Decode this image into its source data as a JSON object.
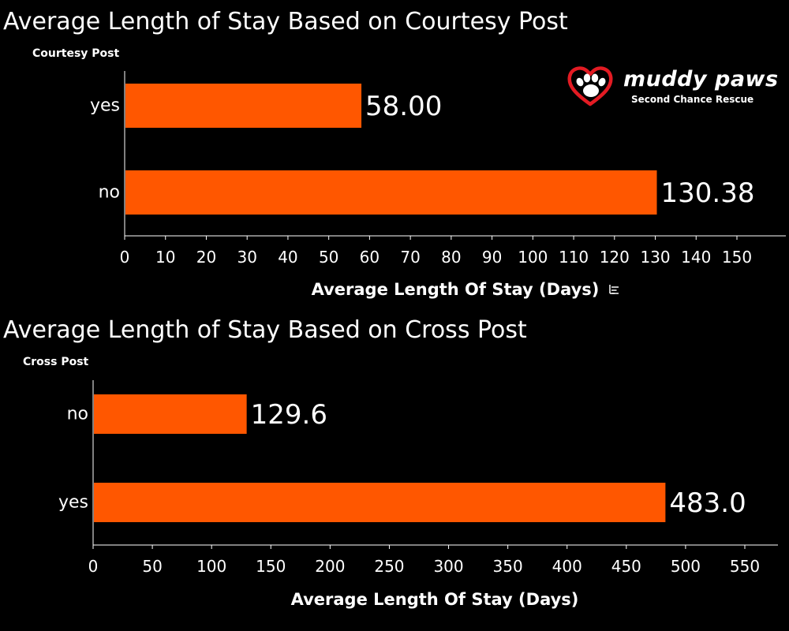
{
  "logo": {
    "name": "muddy paws",
    "tagline": "Second Chance Rescue",
    "heart_color": "#e31b23"
  },
  "colors": {
    "bar": "#ff5700",
    "background": "#000000",
    "text": "#ffffff",
    "axis": "#ffffff"
  },
  "chart_data": [
    {
      "type": "bar",
      "orientation": "horizontal",
      "title": "Average Length of Stay Based on Courtesy Post",
      "dimension_label": "Courtesy Post",
      "categories": [
        "yes",
        "no"
      ],
      "values": [
        58.0,
        130.38
      ],
      "data_labels": [
        "58.00",
        "130.38"
      ],
      "xlabel": "Average Length Of Stay (Days)",
      "xlabel_sort_icon": "sort-descending-icon",
      "xlim": [
        0,
        150
      ],
      "xticks": [
        0,
        10,
        20,
        30,
        40,
        50,
        60,
        70,
        80,
        90,
        100,
        110,
        120,
        130,
        140,
        150
      ],
      "grid": false
    },
    {
      "type": "bar",
      "orientation": "horizontal",
      "title": "Average Length of Stay Based on Cross Post",
      "dimension_label": "Cross Post",
      "categories": [
        "no",
        "yes"
      ],
      "values": [
        129.6,
        483.0
      ],
      "data_labels": [
        "129.6",
        "483.0"
      ],
      "xlabel": "Average Length Of Stay (Days)",
      "xlim": [
        0,
        550
      ],
      "xticks": [
        0,
        50,
        100,
        150,
        200,
        250,
        300,
        350,
        400,
        450,
        500,
        550
      ],
      "grid": false
    }
  ]
}
